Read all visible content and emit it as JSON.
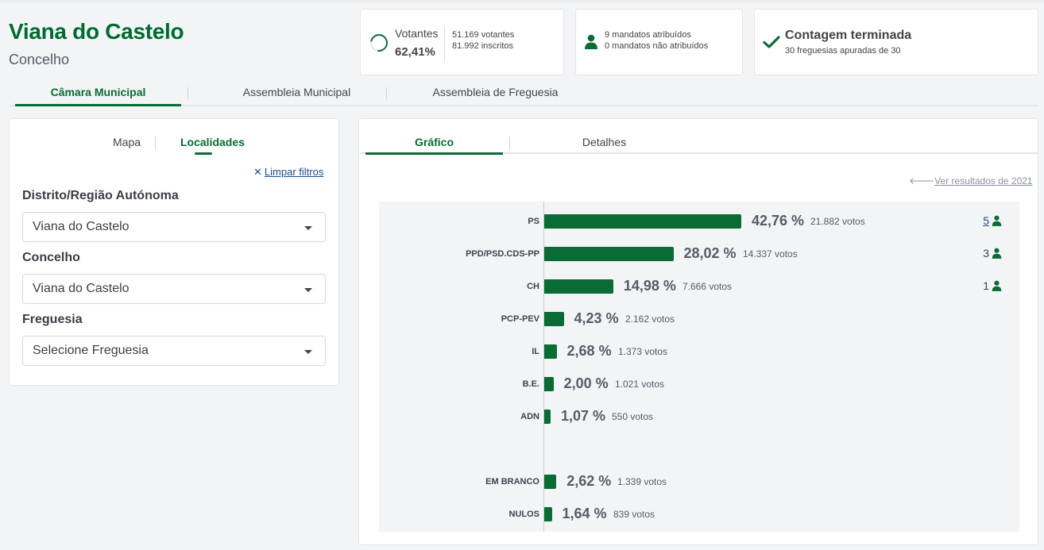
{
  "header": {
    "title": "Viana do Castelo",
    "subtitle": "Concelho"
  },
  "stats": {
    "votantes": {
      "label": "Votantes",
      "percent": "62,41%",
      "votantes": "51.169 votantes",
      "inscritos": "81.992 inscritos"
    },
    "mandatos": {
      "atribuidos": "9 mandatos atribuídos",
      "nao_atribuidos": "0 mandatos não atribuídos"
    },
    "contagem": {
      "title": "Contagem terminada",
      "detail": "30 freguesias apuradas de 30"
    }
  },
  "main_tabs": [
    "Câmara Municipal",
    "Assembleia Municipal",
    "Assembleia de Freguesia"
  ],
  "left_panel": {
    "tabs": [
      "Mapa",
      "Localidades"
    ],
    "clear_filters": "Limpar filtros",
    "distrito_label": "Distrito/Região Autónoma",
    "distrito_value": "Viana do Castelo",
    "concelho_label": "Concelho",
    "concelho_value": "Viana do Castelo",
    "freguesia_label": "Freguesia",
    "freguesia_value": "Selecione Freguesia"
  },
  "right_panel": {
    "tabs": [
      "Gráfico",
      "Detalhes"
    ],
    "previous_results": "Ver resultados de 2021"
  },
  "colors": {
    "accent": "#0a6b34",
    "link": "#1e4d8c"
  },
  "chart_data": {
    "type": "bar",
    "orientation": "horizontal",
    "categories": [
      "PS",
      "PPD/PSD.CDS-PP",
      "CH",
      "PCP-PEV",
      "IL",
      "B.E.",
      "ADN",
      "EM BRANCO",
      "NULOS"
    ],
    "values": [
      42.76,
      28.02,
      14.98,
      4.23,
      2.68,
      2.0,
      1.07,
      2.62,
      1.64
    ],
    "percent_labels": [
      "42,76 %",
      "28,02 %",
      "14,98 %",
      "4,23 %",
      "2,68 %",
      "2,00 %",
      "1,07 %",
      "2,62 %",
      "1,64 %"
    ],
    "votes": [
      "21.882 votos",
      "14.337 votos",
      "7.666 votos",
      "2.162 votos",
      "1.373 votos",
      "1.021 votos",
      "550 votos",
      "1.339 votos",
      "839 votos"
    ],
    "seats": [
      "5",
      "3",
      "1",
      "",
      "",
      "",
      "",
      "",
      ""
    ],
    "xlim": [
      0,
      42.76
    ]
  }
}
